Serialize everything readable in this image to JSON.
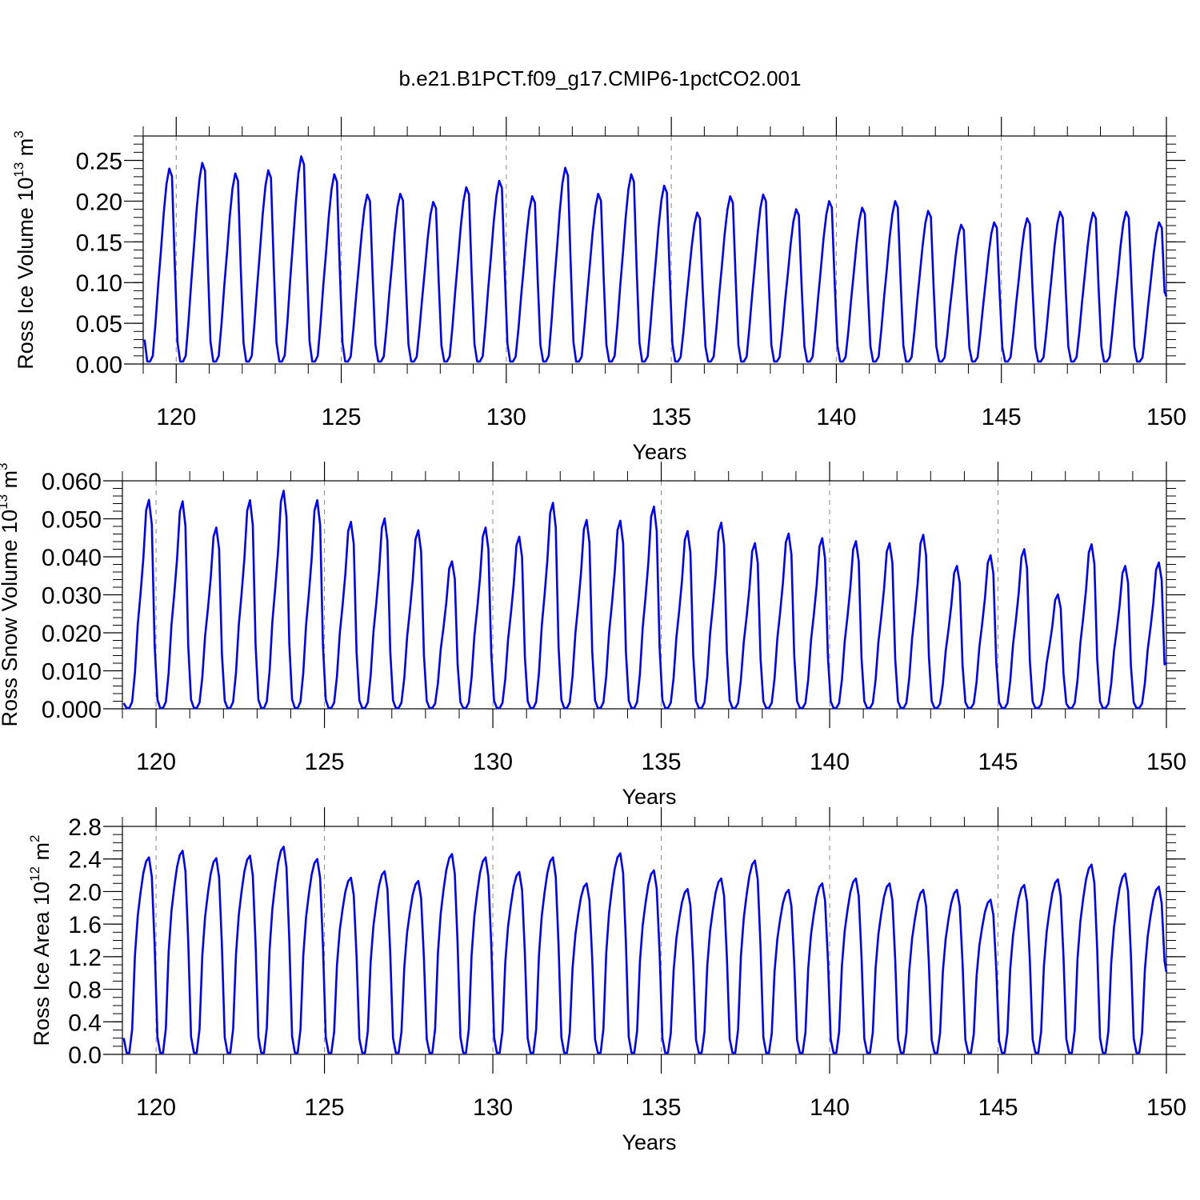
{
  "figure": {
    "title": "b.e21.B1PCT.f09_g17.CMIP6-1pctCO2.001",
    "line_color": "#0000ff",
    "grid_color": "#888888",
    "xlabel": "Years",
    "x_ticks": [
      "120",
      "125",
      "130",
      "135",
      "140",
      "145",
      "150"
    ]
  },
  "chart_data": [
    {
      "type": "line",
      "title": "",
      "xlabel": "Years",
      "ylabel_parts": [
        "Ross Ice Volume 10",
        "13",
        " m",
        "3"
      ],
      "xlim": [
        119,
        150
      ],
      "ylim": [
        0,
        0.28
      ],
      "y_ticks": [
        0.0,
        0.05,
        0.1,
        0.15,
        0.2,
        0.25
      ],
      "y_tick_labels": [
        "0.00",
        "0.05",
        "0.10",
        "0.15",
        "0.20",
        "0.25"
      ],
      "y_minor_step": 0.01,
      "grid": "vertical dashed at major x ticks",
      "series": [
        {
          "start_year": 119.04,
          "month_step": 0.0833,
          "annual_shape": [
            0.0,
            0.0,
            0.03,
            0.2,
            0.4,
            0.58,
            0.77,
            0.92,
            1.0,
            0.96,
            0.5,
            0.1
          ],
          "yearly_min": [
            0.003,
            0.003,
            0.003,
            0.003,
            0.003,
            0.003,
            0.003,
            0.003,
            0.003,
            0.003,
            0.003,
            0.003,
            0.003,
            0.003,
            0.003,
            0.003,
            0.003,
            0.003,
            0.003,
            0.003,
            0.003,
            0.003,
            0.003,
            0.003,
            0.003,
            0.003,
            0.003,
            0.003,
            0.003,
            0.003,
            0.003
          ],
          "yearly_max": [
            0.24,
            0.247,
            0.234,
            0.238,
            0.255,
            0.233,
            0.208,
            0.209,
            0.199,
            0.217,
            0.225,
            0.206,
            0.241,
            0.209,
            0.233,
            0.219,
            0.186,
            0.206,
            0.208,
            0.19,
            0.2,
            0.192,
            0.2,
            0.188,
            0.171,
            0.174,
            0.179,
            0.187,
            0.186,
            0.187,
            0.174
          ],
          "start_value": 0.03,
          "end_value": 0.083
        }
      ]
    },
    {
      "type": "line",
      "title": "",
      "xlabel": "Years",
      "ylabel_parts": [
        "Ross Snow Volume 10",
        "13",
        " m",
        "3"
      ],
      "xlim": [
        119,
        150
      ],
      "ylim": [
        0,
        0.06
      ],
      "y_ticks": [
        0.0,
        0.01,
        0.02,
        0.03,
        0.04,
        0.05,
        0.06
      ],
      "y_tick_labels": [
        "0.000",
        "0.010",
        "0.020",
        "0.030",
        "0.040",
        "0.050",
        "0.060"
      ],
      "y_minor_step": 0.002,
      "grid": "vertical dashed at major x ticks",
      "series": [
        {
          "start_year": 119.04,
          "month_step": 0.0833,
          "annual_shape": [
            0.0,
            0.0,
            0.03,
            0.17,
            0.4,
            0.55,
            0.72,
            0.95,
            1.0,
            0.88,
            0.3,
            0.04
          ],
          "yearly_min": [
            0.0002,
            0.0002,
            0.0002,
            0.0002,
            0.0002,
            0.0002,
            0.0002,
            0.0002,
            0.0002,
            0.0002,
            0.0002,
            0.0002,
            0.0002,
            0.0002,
            0.0002,
            0.0002,
            0.0002,
            0.0002,
            0.0002,
            0.0002,
            0.0002,
            0.0002,
            0.0002,
            0.0002,
            0.0002,
            0.0002,
            0.0002,
            0.0002,
            0.0002,
            0.0002,
            0.0002
          ],
          "yearly_max": [
            0.055,
            0.0546,
            0.0477,
            0.0549,
            0.0574,
            0.0549,
            0.0492,
            0.0501,
            0.047,
            0.0388,
            0.0477,
            0.0453,
            0.0542,
            0.0497,
            0.0495,
            0.0532,
            0.0468,
            0.049,
            0.0436,
            0.0461,
            0.0449,
            0.0441,
            0.0436,
            0.0458,
            0.0376,
            0.0404,
            0.042,
            0.0301,
            0.0433,
            0.0376,
            0.0385
          ],
          "start_value": 0.0015,
          "end_value": 0.012
        }
      ]
    },
    {
      "type": "line",
      "title": "",
      "xlabel": "Years",
      "ylabel_parts": [
        "Ross Ice Area 10",
        "12",
        " m",
        "2"
      ],
      "xlim": [
        119,
        150
      ],
      "ylim": [
        0,
        2.8
      ],
      "y_ticks": [
        0.0,
        0.4,
        0.8,
        1.2,
        1.6,
        2.0,
        2.4,
        2.8
      ],
      "y_tick_labels": [
        "0.0",
        "0.4",
        "0.8",
        "1.2",
        "1.6",
        "2.0",
        "2.4",
        "2.8"
      ],
      "y_minor_step": 0.1,
      "grid": "vertical dashed at major x ticks",
      "series": [
        {
          "start_year": 119.04,
          "month_step": 0.0833,
          "annual_shape": [
            0.0,
            0.0,
            0.12,
            0.5,
            0.7,
            0.82,
            0.92,
            0.98,
            1.0,
            0.9,
            0.55,
            0.08
          ],
          "yearly_min": [
            0.02,
            0.02,
            0.02,
            0.02,
            0.02,
            0.02,
            0.02,
            0.02,
            0.02,
            0.02,
            0.02,
            0.02,
            0.02,
            0.02,
            0.02,
            0.02,
            0.02,
            0.02,
            0.02,
            0.02,
            0.02,
            0.02,
            0.02,
            0.02,
            0.02,
            0.02,
            0.02,
            0.02,
            0.02,
            0.02,
            0.02
          ],
          "yearly_max": [
            2.42,
            2.5,
            2.41,
            2.44,
            2.55,
            2.4,
            2.17,
            2.25,
            2.13,
            2.46,
            2.42,
            2.24,
            2.42,
            2.1,
            2.47,
            2.26,
            2.03,
            2.16,
            2.38,
            2.02,
            2.1,
            2.16,
            2.1,
            2.02,
            2.02,
            1.9,
            2.08,
            2.15,
            2.33,
            2.22,
            2.06
          ],
          "start_value": 0.2,
          "end_value": 1.01
        }
      ]
    }
  ]
}
